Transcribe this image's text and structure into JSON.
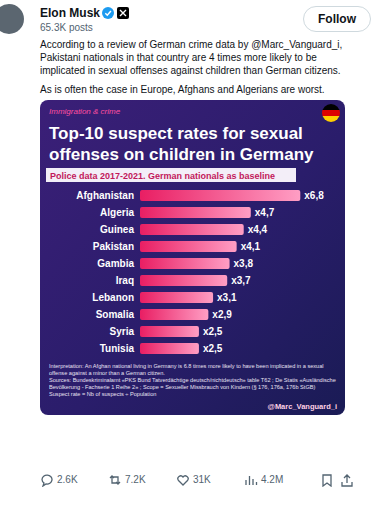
{
  "tweet": {
    "author": "Elon Musk",
    "posts": "65.3K posts",
    "button": "Follow",
    "text": [
      "According to a review of German crime data by @Marc_Vanguard_i, Pakistani nationals in that country are 4 times more likely to be implicated in sexual offenses against children than German citizens.",
      "As is often the case in Europe, Afghans and Algerians are worst."
    ],
    "stats": {
      "replies": "2.6K",
      "reposts": "7.2K",
      "likes": "31K",
      "views": "4.2M"
    }
  },
  "chart_data": {
    "type": "bar",
    "orientation": "horizontal",
    "kicker": "Immigration & crime",
    "title": "Top-10 suspect rates for sexual offenses on children in Germany",
    "subtitle": "Police data 2017-2021. German nationals as baseline",
    "categories": [
      "Afghanistan",
      "Algeria",
      "Guinea",
      "Pakistan",
      "Gambia",
      "Iraq",
      "Lebanon",
      "Somalia",
      "Syria",
      "Tunisia"
    ],
    "values": [
      6.8,
      4.7,
      4.4,
      4.1,
      3.8,
      3.7,
      3.1,
      2.9,
      2.5,
      2.5
    ],
    "value_labels": [
      "x6,8",
      "x4,7",
      "x4,4",
      "x4,1",
      "x3,8",
      "x3,7",
      "x3,1",
      "x2,9",
      "x2,5",
      "x2,5"
    ],
    "data_labels": true,
    "tick_labels": false,
    "xlim": [
      0,
      7
    ],
    "color": "#e91e63",
    "note": "Interpretation: An Afghan national living in Germany is 6.8 times more likely to have been implicated in a sexual offense against a minor than a German citizen.",
    "source": "Sources: Bundeskriminalamt «PKS Bund Tatverdächtige deutsch/nichtdeutsch» table T62 ; De Statis «Ausländische Bevölkerung - Fachserie 1 Reihe 2» ; Scope = Sexueller Missbrauch von Kindern (§ 176, 176a, 176b StGB) Suspect rate = Nb of suspects ÷ Population",
    "credit": "@Marc_Vanguard_i"
  }
}
